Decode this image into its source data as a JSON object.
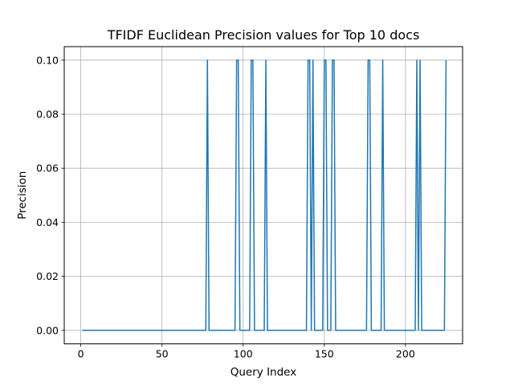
{
  "chart_data": {
    "type": "line",
    "title": "TFIDF Euclidean Precision values for Top 10 docs",
    "xlabel": "Query Index",
    "ylabel": "Precision",
    "xlim": [
      -10.2,
      235.2
    ],
    "ylim": [
      -0.005,
      0.105
    ],
    "x_ticks": [
      0,
      50,
      100,
      150,
      200
    ],
    "y_ticks": [
      0.0,
      0.02,
      0.04,
      0.06,
      0.08,
      0.1
    ],
    "x_tick_labels": [
      "0",
      "50",
      "100",
      "150",
      "200"
    ],
    "y_tick_labels": [
      "0.00",
      "0.02",
      "0.04",
      "0.06",
      "0.08",
      "0.10"
    ],
    "grid": true,
    "line_color": "#1f77b4",
    "series": [
      {
        "x_range": [
          1,
          225
        ],
        "default_value": 0.0,
        "peaks": [
          {
            "x": 78,
            "value": 0.1
          },
          {
            "x": 96,
            "value": 0.1
          },
          {
            "x": 97,
            "value": 0.1
          },
          {
            "x": 105,
            "value": 0.1
          },
          {
            "x": 106,
            "value": 0.1
          },
          {
            "x": 114,
            "value": 0.1
          },
          {
            "x": 140,
            "value": 0.1
          },
          {
            "x": 141,
            "value": 0.1
          },
          {
            "x": 143,
            "value": 0.1
          },
          {
            "x": 150,
            "value": 0.1
          },
          {
            "x": 151,
            "value": 0.1
          },
          {
            "x": 155,
            "value": 0.1
          },
          {
            "x": 156,
            "value": 0.1
          },
          {
            "x": 177,
            "value": 0.1
          },
          {
            "x": 178,
            "value": 0.1
          },
          {
            "x": 186,
            "value": 0.1
          },
          {
            "x": 207,
            "value": 0.1
          },
          {
            "x": 209,
            "value": 0.1
          },
          {
            "x": 225,
            "value": 0.1
          }
        ]
      }
    ]
  }
}
